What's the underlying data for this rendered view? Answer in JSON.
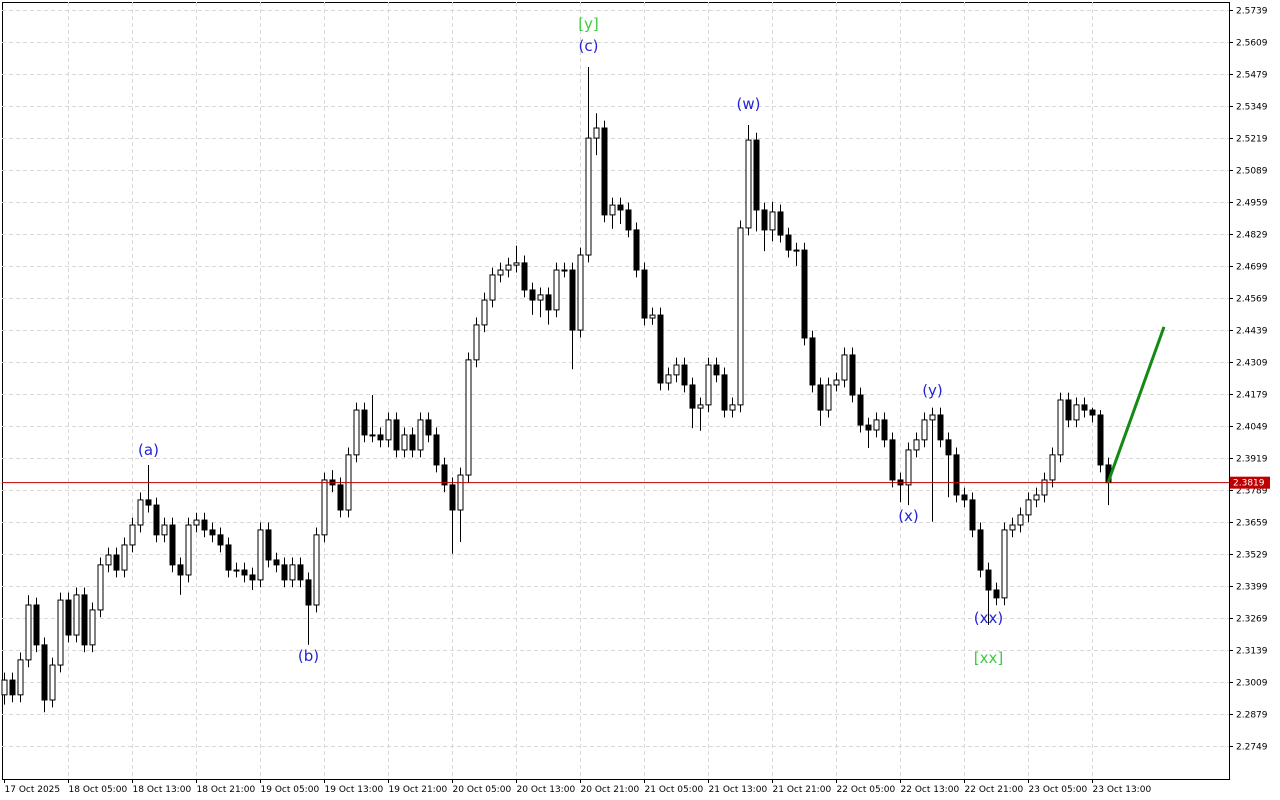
{
  "chart_data": {
    "type": "candlestick",
    "ylim": [
      2.2615,
      2.5772
    ],
    "yticks": [
      2.5739,
      2.5609,
      2.5479,
      2.5349,
      2.5219,
      2.5089,
      2.4959,
      2.4829,
      2.4699,
      2.4569,
      2.4439,
      2.4309,
      2.4179,
      2.4049,
      2.3919,
      2.3789,
      2.3659,
      2.3529,
      2.3399,
      2.3269,
      2.3139,
      2.3009,
      2.2879,
      2.2749
    ],
    "xticks": [
      "17 Oct 2025",
      "18 Oct 05:00",
      "18 Oct 13:00",
      "18 Oct 21:00",
      "19 Oct 05:00",
      "19 Oct 13:00",
      "19 Oct 21:00",
      "20 Oct 05:00",
      "20 Oct 13:00",
      "20 Oct 21:00",
      "21 Oct 05:00",
      "21 Oct 13:00",
      "21 Oct 21:00",
      "22 Oct 05:00",
      "22 Oct 13:00",
      "22 Oct 21:00",
      "23 Oct 05:00",
      "23 Oct 13:00"
    ],
    "grid": true,
    "up_color": "#ffffff",
    "down_color": "#000000",
    "last_price": 2.3819,
    "last_price_color": "#c00000",
    "forecast": {
      "color": "#138a13",
      "values": [
        2.3819,
        2.4452
      ]
    },
    "annotations": [
      {
        "text": "(a)",
        "color": "#2323d6"
      },
      {
        "text": "(b)",
        "color": "#2323d6"
      },
      {
        "text": "[y]",
        "color": "#3ecb3e"
      },
      {
        "text": "(c)",
        "color": "#2323d6"
      },
      {
        "text": "(w)",
        "color": "#2323d6"
      },
      {
        "text": "(x)",
        "color": "#2323d6"
      },
      {
        "text": "(y)",
        "color": "#2323d6"
      },
      {
        "text": "(xx)",
        "color": "#2323d6"
      },
      {
        "text": "[xx]",
        "color": "#3ecb3e"
      }
    ],
    "candles": [
      [
        2.2957,
        2.3047,
        2.2917,
        2.3017
      ],
      [
        2.3017,
        2.3047,
        2.2927,
        2.2957
      ],
      [
        2.2957,
        2.3129,
        2.2927,
        2.3099
      ],
      [
        2.3099,
        2.3362,
        2.3069,
        2.3322
      ],
      [
        2.3322,
        2.3352,
        2.313,
        2.316
      ],
      [
        2.316,
        2.319,
        2.2886,
        2.2936
      ],
      [
        2.2936,
        2.3108,
        2.2906,
        2.3078
      ],
      [
        2.3078,
        2.3372,
        2.3048,
        2.3342
      ],
      [
        2.3342,
        2.3372,
        2.317,
        2.32
      ],
      [
        2.32,
        2.3393,
        2.317,
        2.3363
      ],
      [
        2.3363,
        2.3393,
        2.313,
        2.316
      ],
      [
        2.316,
        2.3332,
        2.313,
        2.3302
      ],
      [
        2.3302,
        2.3515,
        2.3272,
        2.3485
      ],
      [
        2.3485,
        2.3555,
        2.3455,
        2.3525
      ],
      [
        2.3525,
        2.3555,
        2.3434,
        2.3464
      ],
      [
        2.3464,
        2.3596,
        2.3434,
        2.3566
      ],
      [
        2.3566,
        2.3677,
        2.3536,
        2.3647
      ],
      [
        2.3647,
        2.3779,
        2.3617,
        2.3749
      ],
      [
        2.3749,
        2.3891,
        2.3698,
        2.3728
      ],
      [
        2.3728,
        2.3758,
        2.3577,
        2.3607
      ],
      [
        2.3607,
        2.3677,
        2.3577,
        2.3647
      ],
      [
        2.3647,
        2.3677,
        2.3455,
        2.3485
      ],
      [
        2.3485,
        2.3515,
        2.3363,
        2.3444
      ],
      [
        2.3444,
        2.3677,
        2.3414,
        2.3647
      ],
      [
        2.3647,
        2.3697,
        2.3617,
        2.3667
      ],
      [
        2.3667,
        2.3697,
        2.3597,
        2.3627
      ],
      [
        2.3627,
        2.3657,
        2.3577,
        2.3607
      ],
      [
        2.3607,
        2.3637,
        2.3536,
        2.3566
      ],
      [
        2.3566,
        2.3596,
        2.3434,
        2.3464
      ],
      [
        2.3464,
        2.3494,
        2.3434,
        2.3464
      ],
      [
        2.3464,
        2.3494,
        2.3414,
        2.3444
      ],
      [
        2.3444,
        2.3474,
        2.3383,
        2.3424
      ],
      [
        2.3424,
        2.3657,
        2.3394,
        2.3627
      ],
      [
        2.3627,
        2.3657,
        2.3475,
        2.3505
      ],
      [
        2.3505,
        2.3535,
        2.3455,
        2.3485
      ],
      [
        2.3485,
        2.3515,
        2.3394,
        2.3424
      ],
      [
        2.3424,
        2.3515,
        2.3394,
        2.3485
      ],
      [
        2.3485,
        2.3515,
        2.3394,
        2.3424
      ],
      [
        2.3424,
        2.3454,
        2.316,
        2.3322
      ],
      [
        2.3322,
        2.3637,
        2.3292,
        2.3607
      ],
      [
        2.3607,
        2.386,
        2.3577,
        2.383
      ],
      [
        2.383,
        2.387,
        2.378,
        2.381
      ],
      [
        2.381,
        2.384,
        2.3678,
        2.3708
      ],
      [
        2.3708,
        2.3962,
        2.3678,
        2.3932
      ],
      [
        2.3932,
        2.4144,
        2.3902,
        2.4114
      ],
      [
        2.4114,
        2.4144,
        2.3983,
        2.4013
      ],
      [
        2.4013,
        2.4175,
        2.3983,
        2.4013
      ],
      [
        2.4013,
        2.4043,
        2.3963,
        2.3993
      ],
      [
        2.3993,
        2.4104,
        2.3963,
        2.4074
      ],
      [
        2.4074,
        2.4104,
        2.3922,
        2.3952
      ],
      [
        2.3952,
        2.4043,
        2.3922,
        2.4013
      ],
      [
        2.4013,
        2.4043,
        2.3922,
        2.3952
      ],
      [
        2.3952,
        2.4104,
        2.3922,
        2.4074
      ],
      [
        2.4074,
        2.4104,
        2.3983,
        2.4013
      ],
      [
        2.4013,
        2.4043,
        2.3861,
        2.3891
      ],
      [
        2.3891,
        2.3921,
        2.378,
        2.381
      ],
      [
        2.381,
        2.384,
        2.353,
        2.3708
      ],
      [
        2.3708,
        2.388,
        2.3578,
        2.385
      ],
      [
        2.385,
        2.4348,
        2.382,
        2.4318
      ],
      [
        2.4318,
        2.449,
        2.4288,
        2.446
      ],
      [
        2.446,
        2.4591,
        2.443,
        2.4561
      ],
      [
        2.4561,
        2.4693,
        2.4531,
        2.4663
      ],
      [
        2.4663,
        2.4713,
        2.4633,
        2.4683
      ],
      [
        2.4683,
        2.4733,
        2.4653,
        2.4703
      ],
      [
        2.4703,
        2.4782,
        2.4673,
        2.4712
      ],
      [
        2.4712,
        2.4742,
        2.4572,
        2.4602
      ],
      [
        2.4602,
        2.4632,
        2.4501,
        2.4561
      ],
      [
        2.4561,
        2.4612,
        2.4491,
        2.4582
      ],
      [
        2.4582,
        2.4612,
        2.4461,
        2.4521
      ],
      [
        2.4521,
        2.4713,
        2.4491,
        2.4683
      ],
      [
        2.4683,
        2.4713,
        2.4653,
        2.4683
      ],
      [
        2.4683,
        2.4713,
        2.428,
        2.4439
      ],
      [
        2.4439,
        2.4774,
        2.4409,
        2.4744
      ],
      [
        2.4744,
        2.5508,
        2.4714,
        2.5219
      ],
      [
        2.5219,
        2.532,
        2.515,
        2.526
      ],
      [
        2.526,
        2.529,
        2.4877,
        2.4907
      ],
      [
        2.4907,
        2.4977,
        2.485,
        2.4947
      ],
      [
        2.4947,
        2.4977,
        2.487,
        2.4927
      ],
      [
        2.4927,
        2.4957,
        2.4816,
        2.4846
      ],
      [
        2.4846,
        2.4876,
        2.4653,
        2.4683
      ],
      [
        2.4683,
        2.4713,
        2.4458,
        2.4488
      ],
      [
        2.4488,
        2.453,
        2.446,
        2.45
      ],
      [
        2.45,
        2.453,
        2.4194,
        2.4224
      ],
      [
        2.4224,
        2.4287,
        2.4194,
        2.4257
      ],
      [
        2.4257,
        2.4327,
        2.4227,
        2.4297
      ],
      [
        2.4297,
        2.4327,
        2.4186,
        2.4216
      ],
      [
        2.4216,
        2.4246,
        2.404,
        2.4122
      ],
      [
        2.4122,
        2.4165,
        2.403,
        2.4135
      ],
      [
        2.4135,
        2.4327,
        2.4105,
        2.4297
      ],
      [
        2.4297,
        2.4327,
        2.4227,
        2.4257
      ],
      [
        2.4257,
        2.4287,
        2.4084,
        2.4114
      ],
      [
        2.4114,
        2.4165,
        2.4084,
        2.4135
      ],
      [
        2.4135,
        2.4884,
        2.4105,
        2.4854
      ],
      [
        2.4854,
        2.5272,
        2.4824,
        2.5211
      ],
      [
        2.5211,
        2.5241,
        2.484,
        2.4927
      ],
      [
        2.4927,
        2.4957,
        2.476,
        2.4846
      ],
      [
        2.4846,
        2.496,
        2.48,
        2.4919
      ],
      [
        2.4919,
        2.4949,
        2.4795,
        2.4825
      ],
      [
        2.4825,
        2.4855,
        2.4734,
        2.4764
      ],
      [
        2.4764,
        2.4794,
        2.47,
        2.4764
      ],
      [
        2.4764,
        2.4794,
        2.4377,
        2.4407
      ],
      [
        2.4407,
        2.4437,
        2.4186,
        2.4216
      ],
      [
        2.4216,
        2.4246,
        2.405,
        2.4114
      ],
      [
        2.4114,
        2.4246,
        2.4084,
        2.4216
      ],
      [
        2.4216,
        2.4266,
        2.419,
        2.4236
      ],
      [
        2.4236,
        2.4368,
        2.4206,
        2.4338
      ],
      [
        2.4338,
        2.4368,
        2.4145,
        2.4175
      ],
      [
        2.4175,
        2.4205,
        2.4023,
        2.4053
      ],
      [
        2.4053,
        2.4083,
        2.396,
        2.4033
      ],
      [
        2.4033,
        2.4104,
        2.4003,
        2.4074
      ],
      [
        2.4074,
        2.4104,
        2.3963,
        2.3993
      ],
      [
        2.3993,
        2.4023,
        2.38,
        2.383
      ],
      [
        2.383,
        2.386,
        2.374,
        2.381
      ],
      [
        2.381,
        2.3982,
        2.3728,
        2.3952
      ],
      [
        2.3952,
        2.4023,
        2.3922,
        2.3993
      ],
      [
        2.3993,
        2.4104,
        2.3963,
        2.4074
      ],
      [
        2.4074,
        2.4124,
        2.366,
        2.4094
      ],
      [
        2.4094,
        2.4124,
        2.3963,
        2.3993
      ],
      [
        2.3993,
        2.4023,
        2.376,
        2.3932
      ],
      [
        2.3932,
        2.3962,
        2.3739,
        2.3769
      ],
      [
        2.3769,
        2.3799,
        2.3719,
        2.3749
      ],
      [
        2.3749,
        2.3779,
        2.3597,
        2.3627
      ],
      [
        2.3627,
        2.3657,
        2.3434,
        2.3464
      ],
      [
        2.3464,
        2.3494,
        2.3241,
        2.3383
      ],
      [
        2.3383,
        2.3413,
        2.3321,
        2.3351
      ],
      [
        2.3351,
        2.3657,
        2.3321,
        2.3627
      ],
      [
        2.3627,
        2.3677,
        2.3597,
        2.3647
      ],
      [
        2.3647,
        2.3718,
        2.3617,
        2.3688
      ],
      [
        2.3688,
        2.3779,
        2.3658,
        2.3749
      ],
      [
        2.3749,
        2.3799,
        2.3719,
        2.3769
      ],
      [
        2.3769,
        2.386,
        2.3739,
        2.383
      ],
      [
        2.383,
        2.3962,
        2.38,
        2.3932
      ],
      [
        2.3932,
        2.4185,
        2.3902,
        2.4155
      ],
      [
        2.4155,
        2.4185,
        2.4044,
        2.4074
      ],
      [
        2.4074,
        2.4165,
        2.4044,
        2.4135
      ],
      [
        2.4135,
        2.4165,
        2.4084,
        2.4114
      ],
      [
        2.4114,
        2.4124,
        2.4064,
        2.4094
      ],
      [
        2.4094,
        2.4114,
        2.3861,
        2.3891
      ],
      [
        2.3891,
        2.3921,
        2.3728,
        2.3819
      ]
    ]
  }
}
